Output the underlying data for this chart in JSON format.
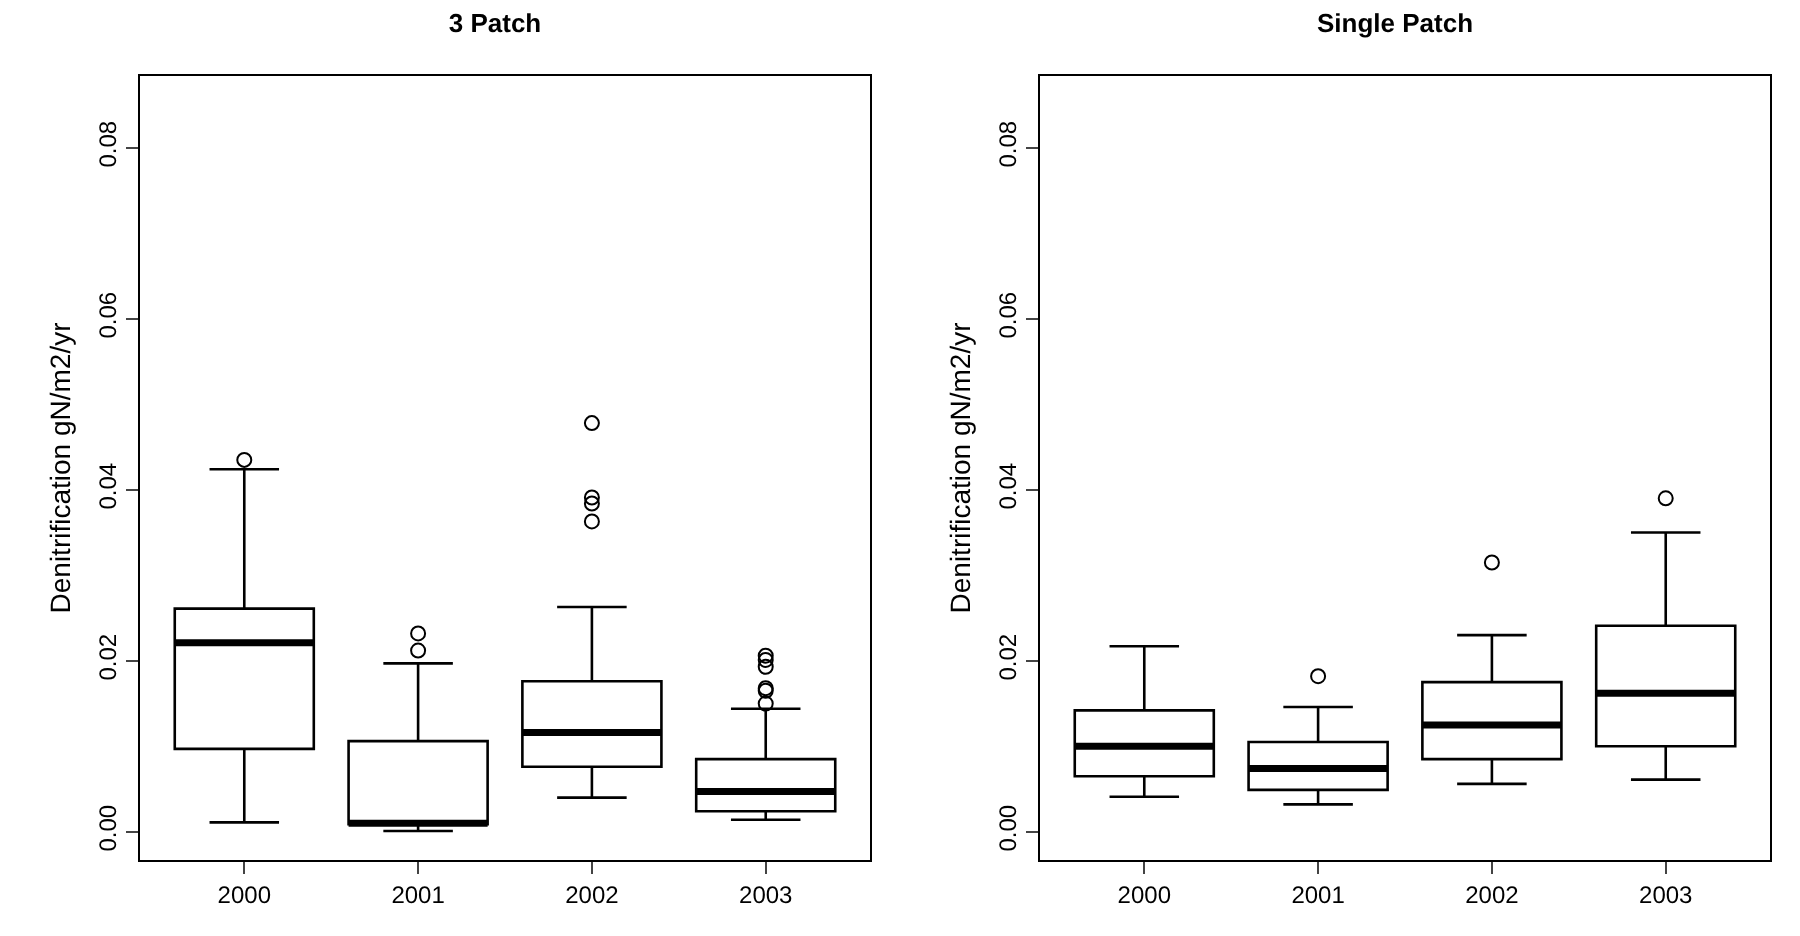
{
  "chart_data": [
    {
      "type": "box",
      "title": "3 Patch",
      "ylabel": "Denitrification gN/m2/yr",
      "categories": [
        "2000",
        "2001",
        "2002",
        "2003"
      ],
      "color": "#000000",
      "boxes": [
        {
          "low": 0.0011,
          "q1": 0.0097,
          "median": 0.0221,
          "q3": 0.0261,
          "high": 0.0424,
          "outliers": [
            0.0435
          ]
        },
        {
          "low": 0.0001,
          "q1": 0.0009,
          "median": 0.001,
          "q3": 0.0106,
          "high": 0.0197,
          "outliers": [
            0.0232,
            0.0212
          ]
        },
        {
          "low": 0.004,
          "q1": 0.0076,
          "median": 0.0116,
          "q3": 0.0176,
          "high": 0.0263,
          "outliers": [
            0.0478,
            0.0391,
            0.0384,
            0.0363
          ]
        },
        {
          "low": 0.0014,
          "q1": 0.0024,
          "median": 0.0047,
          "q3": 0.0085,
          "high": 0.0144,
          "outliers": [
            0.0206,
            0.0201,
            0.0193,
            0.0168,
            0.0165,
            0.015
          ]
        }
      ],
      "ylim": [
        -0.0033,
        0.0884
      ],
      "yticks": [
        {
          "value": 0,
          "label": "0.00"
        },
        0.02,
        0.04,
        0.06,
        0.08
      ],
      "grid": false,
      "legend": false
    },
    {
      "type": "box",
      "title": "Single Patch",
      "ylabel": "Denitrification gN/m2/yr",
      "categories": [
        "2000",
        "2001",
        "2002",
        "2003"
      ],
      "color": "#000000",
      "boxes": [
        {
          "low": 0.0041,
          "q1": 0.0065,
          "median": 0.01,
          "q3": 0.0142,
          "high": 0.0217
        },
        {
          "low": 0.0032,
          "q1": 0.0049,
          "median": 0.0074,
          "q3": 0.0105,
          "high": 0.0146,
          "outliers": [
            0.0182
          ]
        },
        {
          "low": 0.0056,
          "q1": 0.0085,
          "median": 0.0125,
          "q3": 0.0175,
          "high": 0.023,
          "outliers": [
            0.0315
          ]
        },
        {
          "low": 0.0061,
          "q1": 0.01,
          "median": 0.0162,
          "q3": 0.0241,
          "high": 0.035,
          "outliers": [
            0.039
          ]
        }
      ],
      "ylim": [
        -0.0033,
        0.0884
      ],
      "yticks": [
        {
          "value": 0,
          "label": "0.00"
        },
        0.02,
        0.04,
        0.06,
        0.08
      ],
      "grid": false,
      "legend": false
    }
  ]
}
